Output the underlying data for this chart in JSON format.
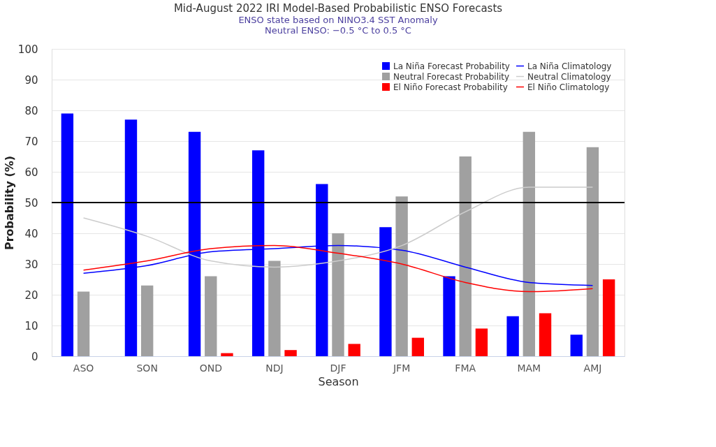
{
  "chart_data": {
    "type": "bar",
    "title": "Mid-August 2022 IRI Model-Based Probabilistic ENSO Forecasts",
    "subtitle": "ENSO state based on NINO3.4 SST Anomaly\nNeutral ENSO: −0.5 °C to 0.5 °C",
    "xlabel": "Season",
    "ylabel": "Probability (%)",
    "categories": [
      "ASO",
      "SON",
      "OND",
      "NDJ",
      "DJF",
      "JFM",
      "FMA",
      "MAM",
      "AMJ"
    ],
    "series": [
      {
        "name": "La Niña Forecast Probability",
        "color": "#0000ff",
        "values": [
          79,
          77,
          73,
          67,
          56,
          42,
          26,
          13,
          7
        ]
      },
      {
        "name": "Neutral Forecast Probability",
        "color": "#a0a0a0",
        "values": [
          21,
          23,
          26,
          31,
          40,
          52,
          65,
          73,
          68
        ]
      },
      {
        "name": "El Niño Forecast Probability",
        "color": "#ff0000",
        "values": [
          0,
          0,
          1,
          2,
          4,
          6,
          9,
          14,
          25
        ]
      },
      {
        "name": "La Niña Climatology",
        "type": "line",
        "color": "#0000ff",
        "values": [
          27,
          29.5,
          34,
          35,
          36,
          34.5,
          29,
          24,
          23
        ]
      },
      {
        "name": "Neutral Climatology",
        "type": "line",
        "color": "#cccccc",
        "values": [
          45,
          39,
          31,
          29,
          31,
          36,
          47,
          55,
          55
        ]
      },
      {
        "name": "El Niño Climatology",
        "type": "line",
        "color": "#ff0000",
        "values": [
          28,
          31,
          35,
          36,
          33.5,
          30,
          24,
          21,
          22
        ]
      }
    ],
    "ylim": [
      0,
      100
    ],
    "yticks": [
      0,
      10,
      20,
      30,
      40,
      50,
      60,
      70,
      80,
      90,
      100
    ],
    "grid": "y",
    "legend": "top right",
    "ref_lines": [
      {
        "axis": "y",
        "value": 50,
        "color": "#000000"
      }
    ]
  }
}
